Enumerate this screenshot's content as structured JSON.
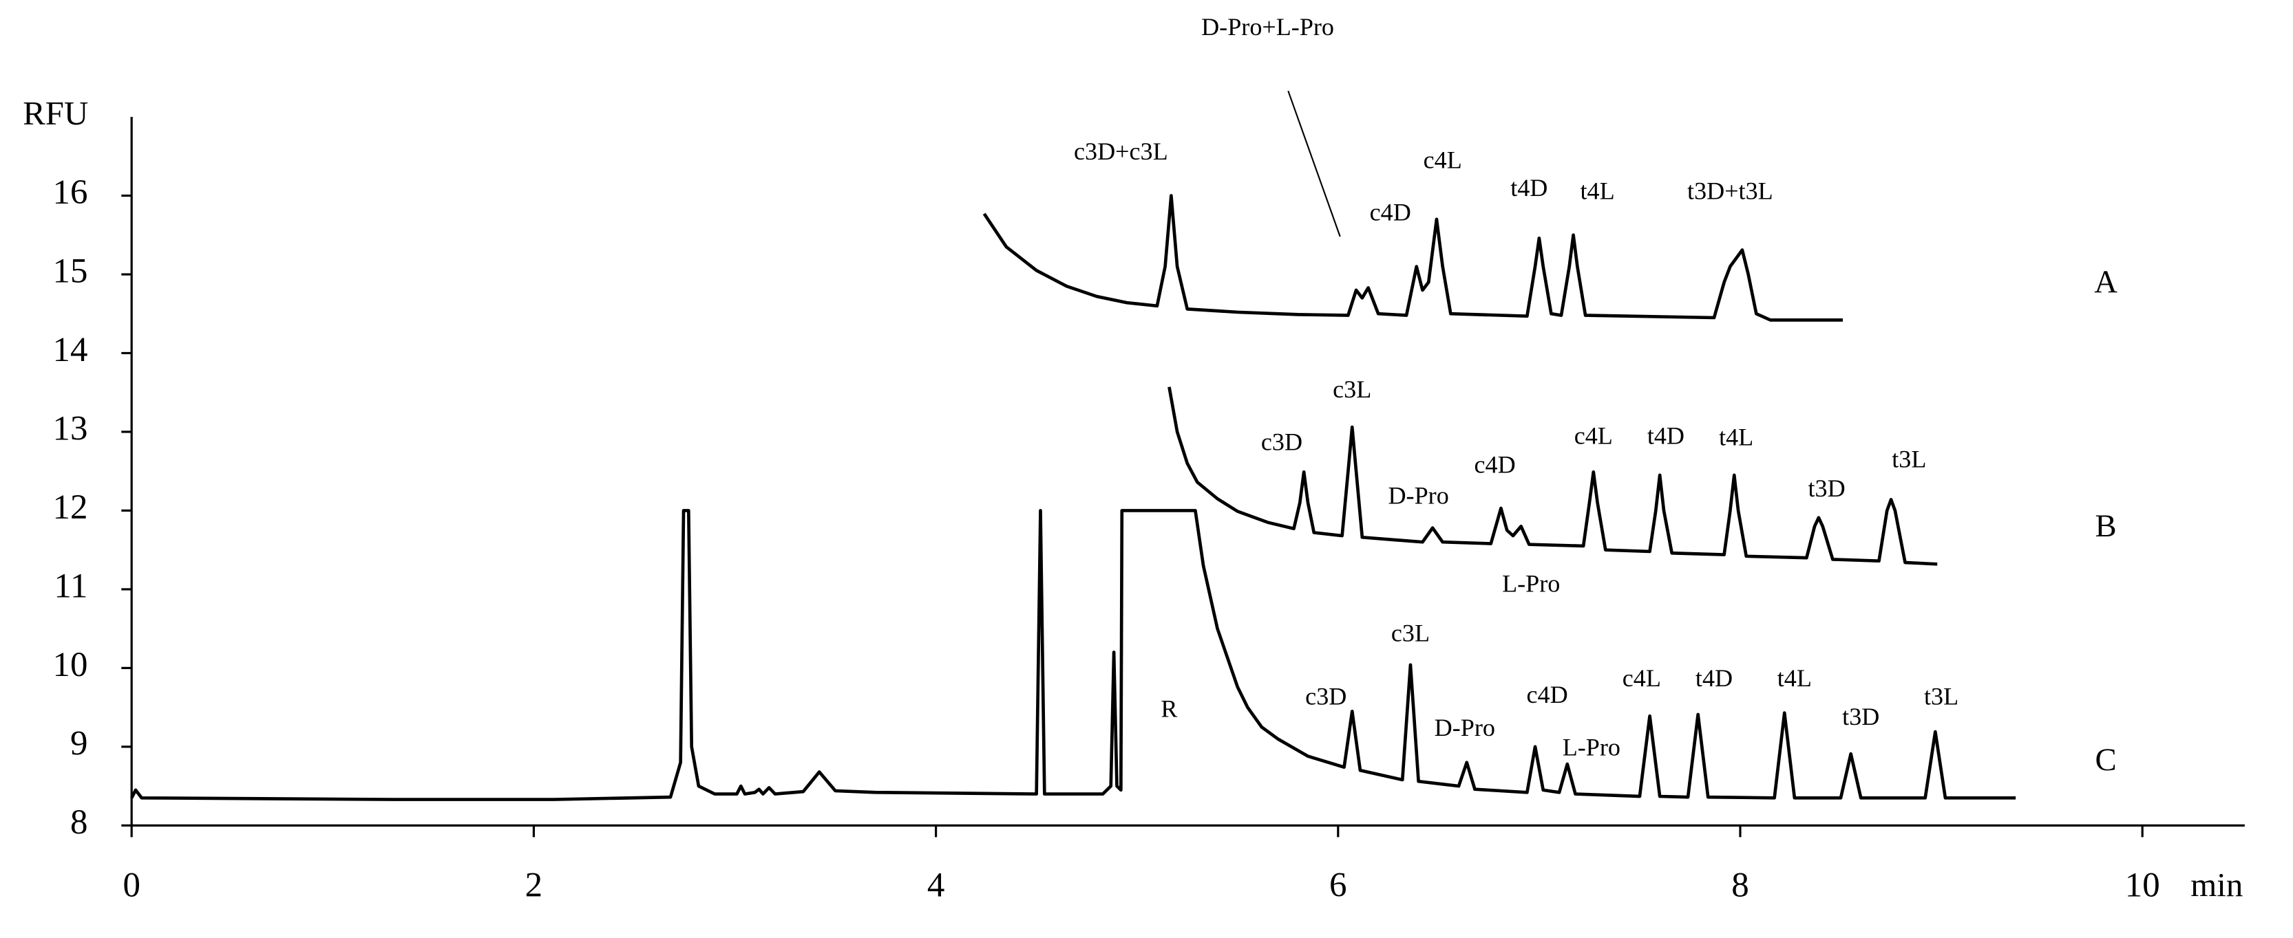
{
  "chart_data": {
    "type": "line",
    "x_label": "min",
    "y_label": "RFU",
    "xlim": [
      0,
      10.5
    ],
    "ylim": [
      8,
      17
    ],
    "xticks": [
      0,
      2,
      4,
      6,
      8,
      10
    ],
    "yticks": [
      8,
      9,
      10,
      11,
      12,
      13,
      14,
      15,
      16
    ],
    "grid": false,
    "series": [
      {
        "name": "A",
        "color": "#000000",
        "x": [
          4.24,
          4.35,
          4.5,
          4.65,
          4.8,
          4.95,
          5.1,
          5.14,
          5.17,
          5.2,
          5.25,
          5.5,
          5.8,
          6.05,
          6.09,
          6.12,
          6.15,
          6.2,
          6.34,
          6.37,
          6.39,
          6.42,
          6.45,
          6.49,
          6.52,
          6.56,
          6.94,
          6.98,
          7.0,
          7.02,
          7.06,
          7.11,
          7.15,
          7.17,
          7.19,
          7.23,
          7.87,
          7.92,
          7.95,
          8.01,
          8.04,
          8.08,
          8.15,
          8.51
        ],
        "values": [
          15.77,
          15.35,
          15.05,
          14.85,
          14.72,
          14.64,
          14.6,
          15.1,
          16.0,
          15.1,
          14.56,
          14.52,
          14.49,
          14.48,
          14.8,
          14.7,
          14.83,
          14.5,
          14.48,
          14.85,
          15.1,
          14.8,
          14.9,
          15.7,
          15.1,
          14.5,
          14.47,
          15.1,
          15.46,
          15.1,
          14.5,
          14.48,
          15.1,
          15.5,
          15.1,
          14.48,
          14.45,
          14.9,
          15.1,
          15.31,
          15.0,
          14.5,
          14.42,
          14.42
        ]
      },
      {
        "name": "B",
        "color": "#000000",
        "x": [
          5.16,
          5.2,
          5.25,
          5.3,
          5.4,
          5.5,
          5.65,
          5.78,
          5.81,
          5.83,
          5.85,
          5.88,
          6.02,
          6.05,
          6.07,
          6.09,
          6.12,
          6.42,
          6.47,
          6.52,
          6.76,
          6.79,
          6.81,
          6.84,
          6.87,
          6.91,
          6.95,
          7.22,
          7.25,
          7.27,
          7.29,
          7.33,
          7.55,
          7.58,
          7.6,
          7.62,
          7.66,
          7.92,
          7.95,
          7.97,
          7.99,
          8.03,
          8.33,
          8.37,
          8.39,
          8.41,
          8.46,
          8.69,
          8.73,
          8.75,
          8.77,
          8.82,
          8.98
        ],
        "values": [
          13.57,
          13.0,
          12.6,
          12.36,
          12.15,
          11.99,
          11.85,
          11.77,
          12.1,
          12.49,
          12.1,
          11.72,
          11.68,
          12.5,
          13.06,
          12.5,
          11.66,
          11.6,
          11.78,
          11.6,
          11.58,
          11.85,
          12.03,
          11.75,
          11.68,
          11.8,
          11.57,
          11.55,
          12.1,
          12.49,
          12.1,
          11.5,
          11.48,
          12.0,
          12.45,
          12.0,
          11.46,
          11.44,
          12.0,
          12.45,
          12.0,
          11.42,
          11.4,
          11.8,
          11.91,
          11.8,
          11.38,
          11.36,
          12.0,
          12.14,
          12.0,
          11.34,
          11.32
        ]
      },
      {
        "name": "C",
        "color": "#000000",
        "x": [
          0,
          0.02,
          0.05,
          1.3,
          2.1,
          2.68,
          2.73,
          2.745,
          2.77,
          2.785,
          2.82,
          2.9,
          3.01,
          3.03,
          3.05,
          3.1,
          3.12,
          3.14,
          3.17,
          3.2,
          3.34,
          3.42,
          3.5,
          3.7,
          4.5,
          4.52,
          4.54,
          4.83,
          4.87,
          4.885,
          4.9,
          4.92,
          4.925,
          5.29,
          5.33,
          5.4,
          5.5,
          5.55,
          5.62,
          5.7,
          5.85,
          6.03,
          6.07,
          6.11,
          6.32,
          6.36,
          6.4,
          6.6,
          6.64,
          6.68,
          6.94,
          6.98,
          7.02,
          7.1,
          7.14,
          7.18,
          7.5,
          7.55,
          7.6,
          7.74,
          7.79,
          7.84,
          8.17,
          8.22,
          8.27,
          8.5,
          8.55,
          8.6,
          8.92,
          8.97,
          9.02,
          9.37
        ],
        "values": [
          8.35,
          8.45,
          8.35,
          8.33,
          8.33,
          8.36,
          8.8,
          12.0,
          12.0,
          9.0,
          8.5,
          8.4,
          8.4,
          8.5,
          8.4,
          8.42,
          8.46,
          8.4,
          8.48,
          8.4,
          8.43,
          8.68,
          8.44,
          8.42,
          8.4,
          12.0,
          8.4,
          8.4,
          8.5,
          10.2,
          8.5,
          8.45,
          12.0,
          12.0,
          11.3,
          10.5,
          9.76,
          9.5,
          9.25,
          9.1,
          8.88,
          8.74,
          9.45,
          8.7,
          8.58,
          10.04,
          8.56,
          8.5,
          8.8,
          8.46,
          8.42,
          9.0,
          8.45,
          8.42,
          8.78,
          8.4,
          8.37,
          9.39,
          8.37,
          8.36,
          9.41,
          8.36,
          8.35,
          9.43,
          8.35,
          8.35,
          8.91,
          8.35,
          8.35,
          9.19,
          8.35,
          8.35
        ]
      }
    ],
    "annotations": [
      {
        "text": "D-Pro+L-Pro",
        "x": 5.65,
        "y": 18.11,
        "arrow": [
          6.01,
          15.48
        ]
      },
      {
        "text": "c3D+c3L",
        "x": 4.92,
        "y": 16.53
      },
      {
        "text": "c4D",
        "x": 6.26,
        "y": 15.76
      },
      {
        "text": "c4L",
        "x": 6.52,
        "y": 16.42
      },
      {
        "text": "t4D",
        "x": 6.95,
        "y": 16.07
      },
      {
        "text": "t4L",
        "x": 7.29,
        "y": 16.03
      },
      {
        "text": "t3D+t3L",
        "x": 7.95,
        "y": 16.03
      },
      {
        "text": "c3D",
        "x": 5.72,
        "y": 12.84
      },
      {
        "text": "c3L",
        "x": 6.07,
        "y": 13.51
      },
      {
        "text": "D-Pro",
        "x": 6.4,
        "y": 12.16
      },
      {
        "text": "c4D",
        "x": 6.78,
        "y": 12.55
      },
      {
        "text": "L-Pro",
        "x": 6.96,
        "y": 11.04
      },
      {
        "text": "c4L",
        "x": 7.27,
        "y": 12.92
      },
      {
        "text": "t4D",
        "x": 7.63,
        "y": 12.92
      },
      {
        "text": "t4L",
        "x": 7.98,
        "y": 12.9
      },
      {
        "text": "t3D",
        "x": 8.43,
        "y": 12.25
      },
      {
        "text": "t3L",
        "x": 8.84,
        "y": 12.62
      },
      {
        "text": "R",
        "x": 5.16,
        "y": 9.45
      },
      {
        "text": "c3D",
        "x": 5.94,
        "y": 9.61
      },
      {
        "text": "c3L",
        "x": 6.36,
        "y": 10.41
      },
      {
        "text": "D-Pro",
        "x": 6.63,
        "y": 9.21
      },
      {
        "text": "c4D",
        "x": 7.04,
        "y": 9.63
      },
      {
        "text": "L-Pro",
        "x": 7.26,
        "y": 8.96
      },
      {
        "text": "c4L",
        "x": 7.51,
        "y": 9.84
      },
      {
        "text": "t4D",
        "x": 7.87,
        "y": 9.84
      },
      {
        "text": "t4L",
        "x": 8.27,
        "y": 9.84
      },
      {
        "text": "t3D",
        "x": 8.6,
        "y": 9.35
      },
      {
        "text": "t3L",
        "x": 9.0,
        "y": 9.61
      }
    ]
  }
}
